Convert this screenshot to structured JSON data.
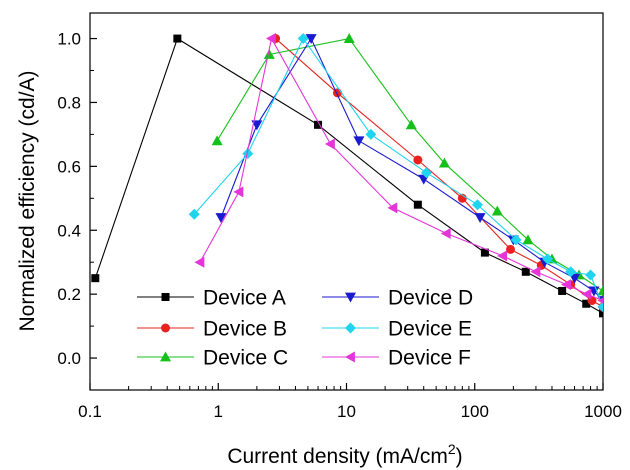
{
  "chart_data": {
    "type": "scatter",
    "xlabel": "Current density (mA/cm",
    "xlabel_sup": "2",
    "xlabel_close": ")",
    "ylabel": "Normalized efficiency (cd/A)",
    "xscale": "log",
    "xlim": [
      0.1,
      1000
    ],
    "ylim": [
      -0.1,
      1.08
    ],
    "xticks": [
      0.1,
      1,
      10,
      100,
      1000
    ],
    "xtick_labels": [
      "0.1",
      "1",
      "10",
      "100",
      "1000"
    ],
    "yticks": [
      0.0,
      0.2,
      0.4,
      0.6,
      0.8,
      1.0
    ],
    "ytick_labels": [
      "0.0",
      "0.2",
      "0.4",
      "0.6",
      "0.8",
      "1.0"
    ],
    "grid": false,
    "legend_position": "bottom-left, two columns",
    "series": [
      {
        "name": "Device A",
        "color": "#000000",
        "marker": "square",
        "x": [
          0.11,
          0.48,
          6.0,
          36,
          120,
          250,
          480,
          740,
          1000
        ],
        "y": [
          0.25,
          1.0,
          0.73,
          0.48,
          0.33,
          0.27,
          0.21,
          0.17,
          0.14
        ]
      },
      {
        "name": "Device B",
        "color": "#e8231f",
        "marker": "circle",
        "x": [
          2.8,
          8.5,
          36,
          80,
          190,
          330,
          560,
          820,
          1000
        ],
        "y": [
          1.0,
          0.83,
          0.62,
          0.5,
          0.34,
          0.29,
          0.23,
          0.18,
          0.16
        ]
      },
      {
        "name": "Device C",
        "color": "#16c01a",
        "marker": "triangle-up",
        "x": [
          0.98,
          2.5,
          10.5,
          32,
          58,
          150,
          260,
          400,
          650,
          1000
        ],
        "y": [
          0.68,
          0.95,
          1.0,
          0.73,
          0.61,
          0.46,
          0.37,
          0.31,
          0.26,
          0.21
        ]
      },
      {
        "name": "Device D",
        "color": "#1a1ad0",
        "marker": "triangle-down",
        "x": [
          1.05,
          2.0,
          5.3,
          12.5,
          40,
          110,
          200,
          350,
          600,
          850,
          1000
        ],
        "y": [
          0.44,
          0.73,
          1.0,
          0.68,
          0.56,
          0.44,
          0.37,
          0.3,
          0.25,
          0.21,
          0.18
        ]
      },
      {
        "name": "Device E",
        "color": "#1ed4ee",
        "marker": "diamond",
        "x": [
          0.65,
          1.7,
          4.6,
          15.5,
          42,
          105,
          210,
          370,
          560,
          800,
          1000
        ],
        "y": [
          0.45,
          0.64,
          1.0,
          0.7,
          0.58,
          0.48,
          0.37,
          0.31,
          0.27,
          0.26,
          0.16
        ]
      },
      {
        "name": "Device F",
        "color": "#e535d8",
        "marker": "triangle-left",
        "x": [
          0.72,
          1.45,
          2.6,
          7.5,
          23,
          60,
          165,
          300,
          520,
          750,
          1000
        ],
        "y": [
          0.3,
          0.52,
          1.0,
          0.67,
          0.47,
          0.39,
          0.32,
          0.27,
          0.23,
          0.2,
          0.18
        ]
      }
    ]
  }
}
